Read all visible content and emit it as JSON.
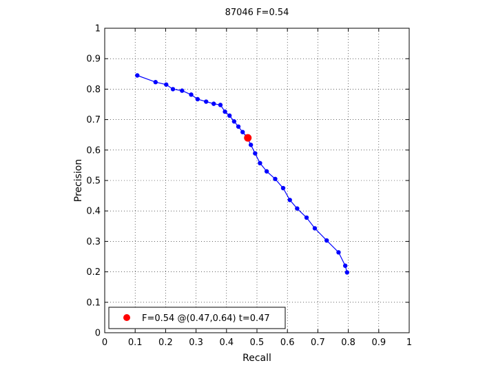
{
  "chart_data": {
    "type": "line",
    "title": "87046 F=0.54",
    "xlabel": "Recall",
    "ylabel": "Precision",
    "xlim": [
      0,
      1
    ],
    "ylim": [
      0,
      1
    ],
    "xticks": [
      "0",
      "0.1",
      "0.2",
      "0.3",
      "0.4",
      "0.5",
      "0.6",
      "0.7",
      "0.8",
      "0.9",
      "1"
    ],
    "yticks": [
      "0",
      "0.1",
      "0.2",
      "0.3",
      "0.4",
      "0.5",
      "0.6",
      "0.7",
      "0.8",
      "0.9",
      "1"
    ],
    "grid": true,
    "legend_position": "bottom-left",
    "series": [
      {
        "color": "#0000ff",
        "x": [
          0.107,
          0.167,
          0.202,
          0.224,
          0.254,
          0.284,
          0.305,
          0.333,
          0.358,
          0.38,
          0.395,
          0.41,
          0.425,
          0.439,
          0.453,
          0.466,
          0.48,
          0.494,
          0.51,
          0.532,
          0.56,
          0.586,
          0.608,
          0.632,
          0.663,
          0.69,
          0.729,
          0.768,
          0.79,
          0.796
        ],
        "y": [
          0.845,
          0.823,
          0.815,
          0.8,
          0.795,
          0.782,
          0.767,
          0.759,
          0.752,
          0.748,
          0.726,
          0.713,
          0.694,
          0.677,
          0.659,
          0.644,
          0.617,
          0.589,
          0.557,
          0.53,
          0.505,
          0.475,
          0.436,
          0.408,
          0.378,
          0.343,
          0.303,
          0.264,
          0.22,
          0.198
        ]
      }
    ],
    "highlight": {
      "x": 0.47,
      "y": 0.64,
      "color": "#ff0000",
      "legend_label": "F=0.54 @(0.47,0.64) t=0.47"
    }
  }
}
